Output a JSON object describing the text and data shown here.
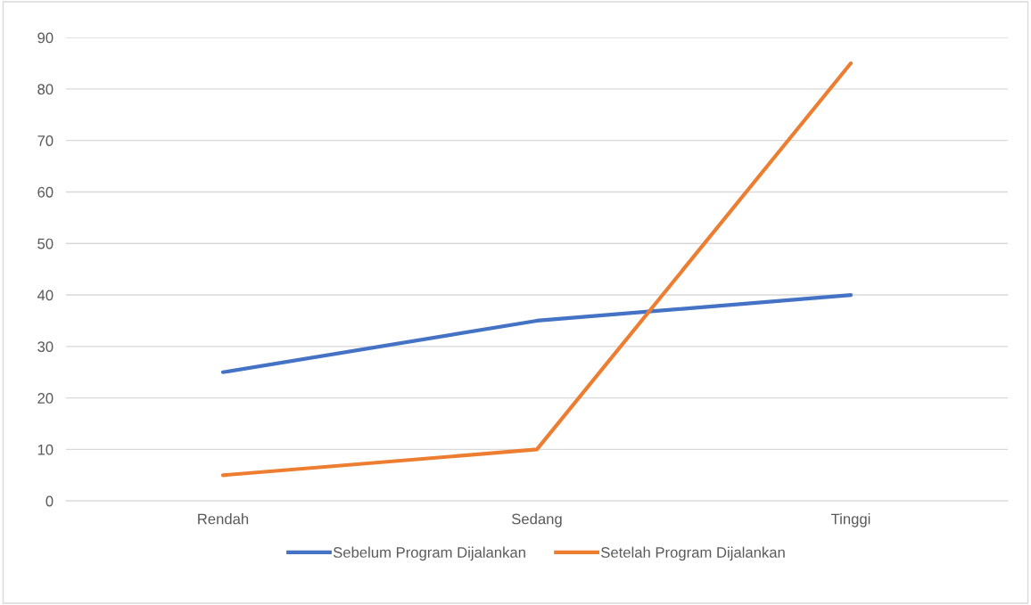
{
  "chart_data": {
    "type": "line",
    "categories": [
      "Rendah",
      "Sedang",
      "Tinggi"
    ],
    "series": [
      {
        "name": "Sebelum Program Dijalankan",
        "color": "#4472c4",
        "values": [
          25,
          35,
          40
        ]
      },
      {
        "name": "Setelah Program Dijalankan",
        "color": "#ed7d31",
        "values": [
          5,
          10,
          85
        ]
      }
    ],
    "ylim": [
      0,
      90
    ],
    "yticks": [
      0,
      10,
      20,
      30,
      40,
      50,
      60,
      70,
      80,
      90
    ],
    "grid": "y",
    "legend": "bottom",
    "marker": "none",
    "line_style": "solid"
  }
}
